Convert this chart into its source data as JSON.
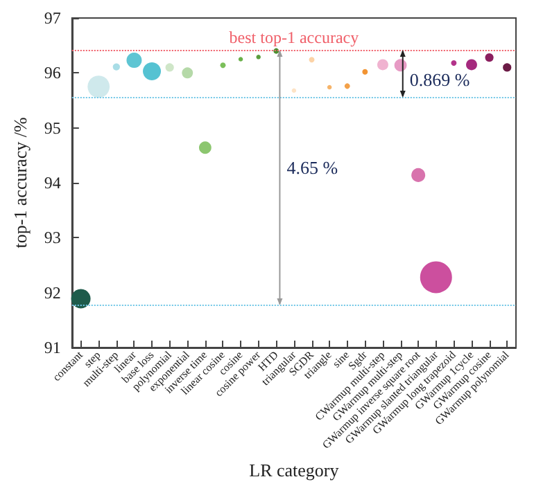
{
  "chart_data": {
    "type": "bubble",
    "xlabel": "LR category",
    "ylabel": "top-1 accuracy /%",
    "categories": [
      "constant",
      "step",
      "multi-step",
      "linear",
      "base loss",
      "polynomial",
      "exponential",
      "inverse time",
      "linear cosine",
      "cosine",
      "cosine power",
      "HTD",
      "triangular",
      "SGDR",
      "triangle",
      "sine",
      "Sgdr",
      "CWarmup multi-step",
      "GWarmup multi-step",
      "GWarmup inverse square root",
      "GWarmup slanted triangular",
      "GWarmup long trapezoid",
      "GWarmup 1cycle",
      "GWarmup cosine",
      "GWarmup polynomial"
    ],
    "values": [
      91.89,
      95.75,
      96.11,
      96.23,
      96.03,
      96.1,
      96.0,
      94.64,
      96.14,
      96.25,
      96.29,
      96.4,
      95.68,
      96.24,
      95.74,
      95.76,
      96.02,
      96.15,
      96.14,
      94.14,
      92.28,
      96.18,
      96.15,
      96.28,
      96.1
    ],
    "sizes": [
      0.37,
      0.48,
      0.05,
      0.23,
      0.32,
      0.07,
      0.12,
      0.15,
      0.03,
      0.02,
      0.02,
      0.03,
      0.02,
      0.03,
      0.02,
      0.03,
      0.03,
      0.12,
      0.15,
      0.19,
      1,
      0.03,
      0.12,
      0.07,
      0.07
    ],
    "colors": [
      "#1e5b4b",
      "#cfe9ec",
      "#a9dde6",
      "#5ec5d3",
      "#55c2d2",
      "#cfe6c8",
      "#b5d9a8",
      "#8cc66f",
      "#7bbf5a",
      "#6ab04a",
      "#5a9e3e",
      "#4a8f30",
      "#fde3c6",
      "#fcd3a6",
      "#f6b46a",
      "#f3a14a",
      "#f29433",
      "#f0b3d0",
      "#e79ac4",
      "#d873ad",
      "#cc4f9e",
      "#b3338a",
      "#a52a7e",
      "#8b1f5f",
      "#6b1b45"
    ],
    "ylim": [
      91,
      97
    ],
    "yticks": [
      91,
      92,
      93,
      94,
      95,
      96,
      97
    ],
    "grid": false,
    "ref_lines": [
      {
        "axis": "y",
        "value": 96.42,
        "label": "best top-1 accuracy",
        "color": "#f0606a",
        "line_style": "dotted"
      },
      {
        "axis": "y",
        "value": 95.55,
        "label": null,
        "color": "#6ec6e6",
        "line_style": "dotted"
      },
      {
        "axis": "y",
        "value": 91.77,
        "label": null,
        "color": "#6ec6e6",
        "line_style": "dotted"
      }
    ],
    "annotations": [
      "0.869 %",
      "4.65 %"
    ]
  }
}
